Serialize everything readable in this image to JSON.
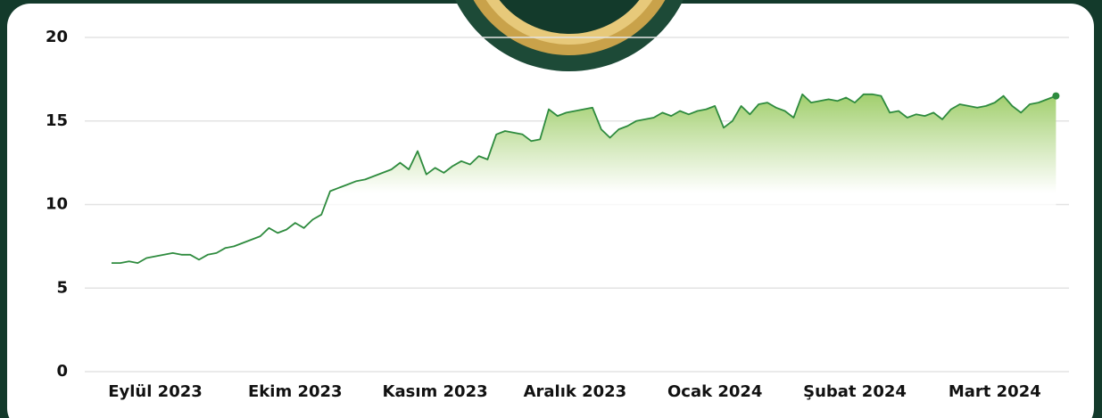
{
  "chart_data": {
    "type": "area",
    "line_color": "#2e8b3e",
    "fill_color": "#9ccc65",
    "grid": true,
    "ylim": [
      0,
      20
    ],
    "yticks": [
      0,
      5,
      10,
      15,
      20
    ],
    "categories": [
      null,
      null,
      null,
      null,
      null,
      "Eylül 2023",
      null,
      null,
      null,
      null,
      null,
      null,
      null,
      null,
      null,
      null,
      null,
      null,
      null,
      null,
      null,
      "Ekim 2023",
      null,
      null,
      null,
      null,
      null,
      null,
      null,
      null,
      null,
      null,
      null,
      null,
      null,
      null,
      null,
      "Kasım 2023",
      null,
      null,
      null,
      null,
      null,
      null,
      null,
      null,
      null,
      null,
      null,
      null,
      null,
      null,
      null,
      "Aralık 2023",
      null,
      null,
      null,
      null,
      null,
      null,
      null,
      null,
      null,
      null,
      null,
      null,
      null,
      null,
      null,
      "Ocak 2024",
      null,
      null,
      null,
      null,
      null,
      null,
      null,
      null,
      null,
      null,
      null,
      null,
      null,
      null,
      null,
      "Şubat 2024",
      null,
      null,
      null,
      null,
      null,
      null,
      null,
      null,
      null,
      null,
      null,
      null,
      null,
      null,
      null,
      "Mart 2024",
      null,
      null,
      null,
      null,
      null,
      null,
      null
    ],
    "values": [
      6.5,
      6.5,
      6.6,
      6.5,
      6.8,
      6.9,
      7.0,
      7.1,
      7.0,
      7.0,
      6.7,
      7.0,
      7.1,
      7.4,
      7.5,
      7.7,
      7.9,
      8.1,
      8.6,
      8.3,
      8.5,
      8.9,
      8.6,
      9.1,
      9.4,
      10.8,
      11.0,
      11.2,
      11.4,
      11.5,
      11.7,
      11.9,
      12.1,
      12.5,
      12.1,
      13.2,
      11.8,
      12.2,
      11.9,
      12.3,
      12.6,
      12.4,
      12.9,
      12.7,
      14.2,
      14.4,
      14.3,
      14.2,
      13.8,
      13.9,
      15.7,
      15.3,
      15.5,
      15.6,
      15.7,
      15.8,
      14.5,
      14.0,
      14.5,
      14.7,
      15.0,
      15.1,
      15.2,
      15.5,
      15.3,
      15.6,
      15.4,
      15.6,
      15.7,
      15.9,
      14.6,
      15.0,
      15.9,
      15.4,
      16.0,
      16.1,
      15.8,
      15.6,
      15.2,
      16.6,
      16.1,
      16.2,
      16.3,
      16.2,
      16.4,
      16.1,
      16.6,
      16.6,
      16.5,
      15.5,
      15.6,
      15.2,
      15.4,
      15.3,
      15.5,
      15.1,
      15.7,
      16.0,
      15.9,
      15.8,
      15.9,
      16.1,
      16.5,
      15.9,
      15.5,
      16.0,
      16.1,
      16.3,
      16.5
    ]
  }
}
